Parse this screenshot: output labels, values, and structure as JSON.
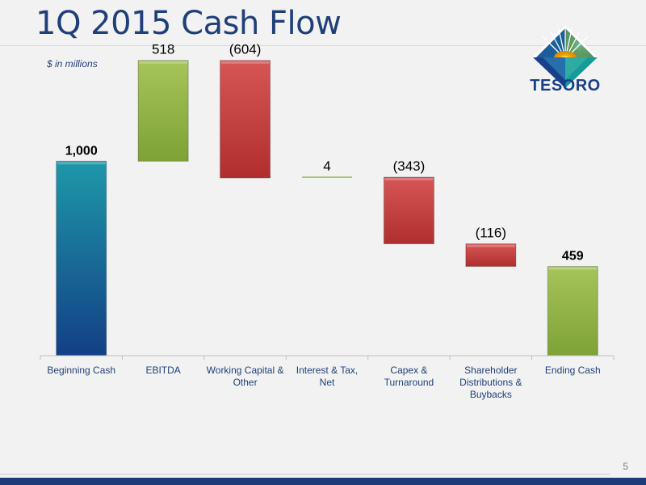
{
  "slide": {
    "title": "1Q 2015 Cash Flow",
    "page_number": "5"
  },
  "logo": {
    "text": "TESORO",
    "colors": {
      "navy": "#1a3f8a",
      "teal": "#169a9a",
      "gold": "#f2a900"
    }
  },
  "chart_data": {
    "type": "waterfall",
    "subtitle": "$ in millions",
    "categories": [
      "Beginning Cash",
      "EBITDA",
      "Working Capital & Other",
      "Interest & Tax, Net",
      "Capex & Turnaround",
      "Shareholder Distributions & Buybacks",
      "Ending Cash"
    ],
    "category_lines": [
      [
        "Beginning Cash"
      ],
      [
        "EBITDA"
      ],
      [
        "Working Capital &",
        "Other"
      ],
      [
        "Interest & Tax,",
        "Net"
      ],
      [
        "Capex &",
        "Turnaround"
      ],
      [
        "Shareholder",
        "Distributions &",
        "Buybacks"
      ],
      [
        "Ending Cash"
      ]
    ],
    "values": [
      1000,
      518,
      -604,
      4,
      -343,
      -116,
      459
    ],
    "kinds": [
      "total",
      "increase",
      "decrease",
      "increase",
      "decrease",
      "decrease",
      "total"
    ],
    "data_labels": [
      "1,000",
      "518",
      "(604)",
      "4",
      "(343)",
      "(116)",
      "459"
    ],
    "ylim": [
      0,
      1600
    ],
    "grid": false,
    "colors": {
      "total_start": "#1a7fa0",
      "increase": "#8db040",
      "decrease": "#c0393a"
    }
  }
}
